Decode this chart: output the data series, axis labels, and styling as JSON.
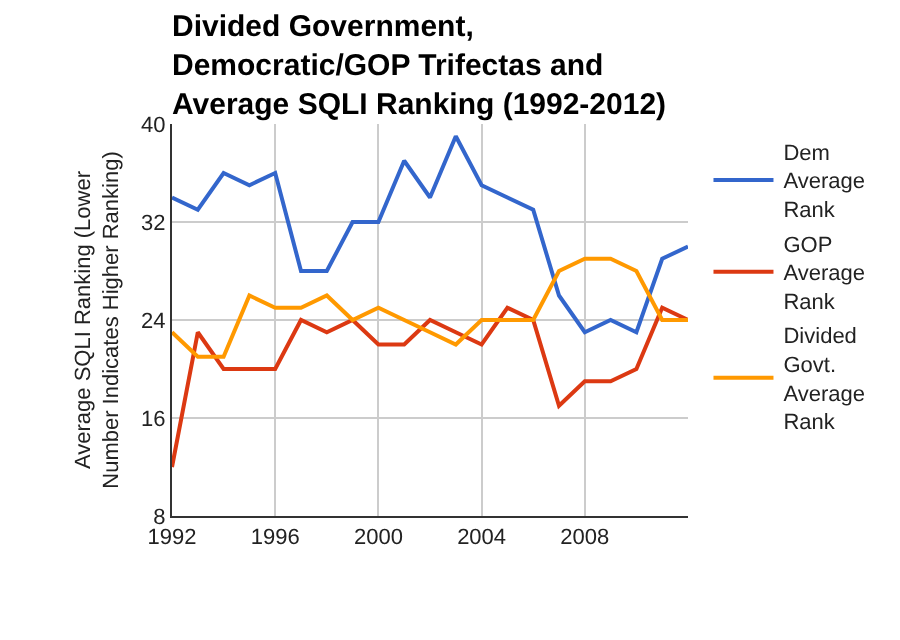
{
  "chart_data": {
    "type": "line",
    "title": "Divided Government, Democratic/GOP Trifectas and Average SQLI Ranking (1992-2012)",
    "ylabel": "Average SQLI Ranking (Lower Number Indicates Higher Ranking)",
    "x": [
      1992,
      1993,
      1994,
      1995,
      1996,
      1997,
      1998,
      1999,
      2000,
      2001,
      2002,
      2003,
      2004,
      2005,
      2006,
      2007,
      2008,
      2009,
      2010,
      2011,
      2012
    ],
    "series": [
      {
        "name": "Dem Average Rank",
        "color": "#3366cc",
        "values": [
          34,
          33,
          36,
          35,
          36,
          28,
          28,
          32,
          32,
          37,
          34,
          39,
          35,
          34,
          33,
          26,
          23,
          24,
          23,
          29,
          30
        ]
      },
      {
        "name": "GOP Average Rank",
        "color": "#dc3912",
        "values": [
          12,
          23,
          20,
          20,
          20,
          24,
          23,
          24,
          22,
          22,
          24,
          23,
          22,
          25,
          24,
          17,
          19,
          19,
          20,
          25,
          24
        ]
      },
      {
        "name": "Divided Govt. Average Rank",
        "color": "#ff9900",
        "values": [
          23,
          21,
          21,
          26,
          25,
          25,
          26,
          24,
          25,
          24,
          23,
          22,
          24,
          24,
          24,
          28,
          29,
          29,
          28,
          24,
          24
        ]
      }
    ],
    "xlim": [
      1992,
      2012
    ],
    "xticks": [
      1992,
      1996,
      2000,
      2004,
      2008
    ],
    "ylim": [
      8,
      40
    ],
    "yticks": [
      8,
      16,
      24,
      32,
      40
    ],
    "grid": true,
    "legend": "right",
    "marker": "none",
    "line_style": "solid"
  }
}
